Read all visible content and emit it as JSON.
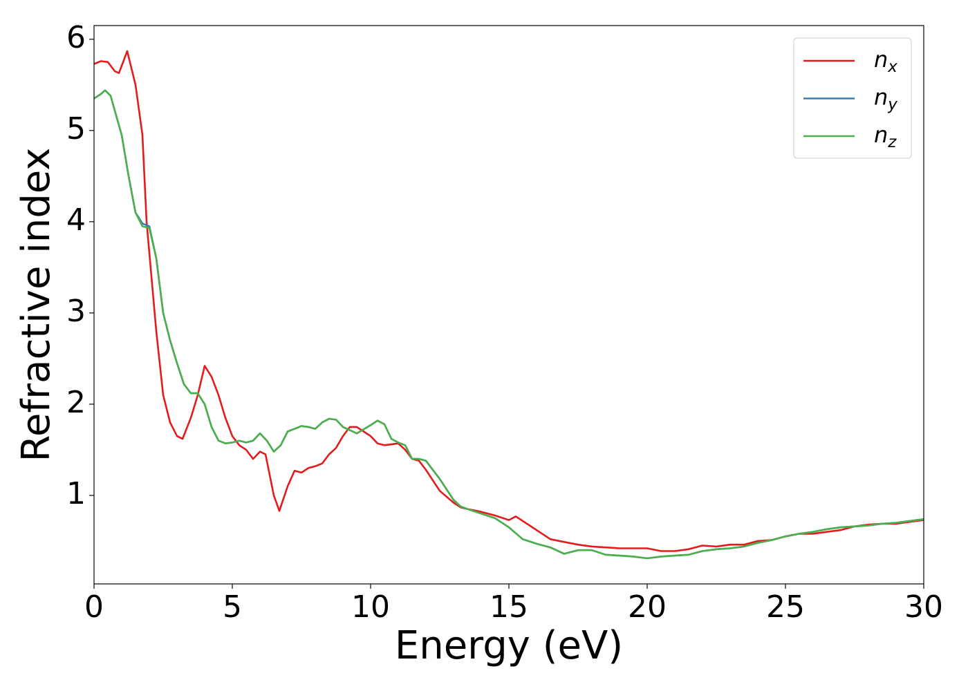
{
  "chart_data": {
    "type": "line",
    "x_label": "Energy (eV)",
    "y_label": "Refractive index",
    "xlim": [
      0,
      30
    ],
    "xticks": [
      0,
      5,
      10,
      15,
      20,
      25,
      30
    ],
    "ylim": [
      0.03,
      6.15
    ],
    "yticks": [
      1,
      2,
      3,
      4,
      5,
      6
    ],
    "grid": false,
    "legend": "upper right",
    "series": [
      {
        "name": "nx",
        "color": "#e41a1c",
        "x": [
          0,
          0.25,
          0.5,
          0.75,
          0.9,
          1.2,
          1.5,
          1.75,
          1.9,
          2.25,
          2.5,
          2.75,
          3,
          3.2,
          3.5,
          3.75,
          4,
          4.25,
          4.5,
          4.75,
          5,
          5.25,
          5.5,
          5.75,
          6,
          6.2,
          6.5,
          6.7,
          7,
          7.25,
          7.5,
          7.75,
          8,
          8.25,
          8.5,
          8.75,
          9,
          9.25,
          9.5,
          9.75,
          10,
          10.25,
          10.5,
          11,
          11.25,
          11.5,
          11.75,
          12,
          12.5,
          13,
          13.25,
          13.5,
          14,
          14.5,
          15,
          15.25,
          15.5,
          16,
          16.5,
          17,
          17.5,
          18,
          18.5,
          19,
          20,
          20.5,
          21,
          21.5,
          22,
          22.5,
          23,
          23.5,
          24,
          24.5,
          25,
          25.5,
          26,
          26.5,
          27,
          27.5,
          28,
          28.5,
          29,
          29.5,
          30
        ],
        "values": [
          5.73,
          5.76,
          5.75,
          5.65,
          5.63,
          5.87,
          5.5,
          4.95,
          4.0,
          2.8,
          2.1,
          1.8,
          1.65,
          1.62,
          1.85,
          2.1,
          2.42,
          2.3,
          2.1,
          1.85,
          1.65,
          1.55,
          1.5,
          1.4,
          1.48,
          1.45,
          1.0,
          0.83,
          1.1,
          1.27,
          1.25,
          1.3,
          1.32,
          1.35,
          1.45,
          1.52,
          1.65,
          1.75,
          1.75,
          1.7,
          1.65,
          1.57,
          1.55,
          1.57,
          1.5,
          1.4,
          1.38,
          1.28,
          1.05,
          0.92,
          0.87,
          0.85,
          0.82,
          0.78,
          0.73,
          0.77,
          0.72,
          0.62,
          0.52,
          0.49,
          0.46,
          0.44,
          0.43,
          0.42,
          0.42,
          0.39,
          0.39,
          0.41,
          0.45,
          0.44,
          0.46,
          0.46,
          0.5,
          0.51,
          0.55,
          0.58,
          0.58,
          0.6,
          0.62,
          0.66,
          0.68,
          0.69,
          0.69,
          0.71,
          0.73
        ]
      },
      {
        "name": "ny",
        "color": "#377eb8",
        "x": [
          0,
          0.25,
          0.4,
          0.6,
          1,
          1.25,
          1.5,
          1.75,
          2,
          2.25,
          2.5,
          2.75,
          3,
          3.25,
          3.5,
          3.75,
          4,
          4.25,
          4.5,
          4.75,
          5,
          5.25,
          5.5,
          5.75,
          6,
          6.25,
          6.5,
          6.75,
          7,
          7.25,
          7.5,
          7.75,
          8,
          8.25,
          8.5,
          8.75,
          9,
          9.5,
          10,
          10.25,
          10.5,
          10.75,
          11,
          11.25,
          11.5,
          11.75,
          12,
          12.5,
          13,
          13.25,
          13.5,
          14,
          14.5,
          15,
          15.5,
          16,
          16.5,
          17,
          17.5,
          18,
          18.5,
          19,
          19.5,
          20,
          20.5,
          21,
          21.5,
          22,
          22.5,
          23,
          23.5,
          24,
          24.5,
          25,
          25.5,
          26,
          26.5,
          27,
          27.5,
          28,
          28.5,
          29,
          29.5,
          30
        ],
        "values": [
          5.35,
          5.4,
          5.44,
          5.38,
          4.95,
          4.5,
          4.1,
          3.98,
          3.95,
          3.6,
          3.0,
          2.7,
          2.45,
          2.22,
          2.12,
          2.12,
          2.0,
          1.75,
          1.6,
          1.57,
          1.58,
          1.6,
          1.58,
          1.6,
          1.68,
          1.6,
          1.48,
          1.55,
          1.7,
          1.73,
          1.76,
          1.75,
          1.73,
          1.8,
          1.84,
          1.83,
          1.75,
          1.68,
          1.77,
          1.82,
          1.78,
          1.62,
          1.58,
          1.55,
          1.4,
          1.4,
          1.38,
          1.18,
          0.95,
          0.88,
          0.85,
          0.8,
          0.75,
          0.65,
          0.52,
          0.47,
          0.43,
          0.36,
          0.4,
          0.4,
          0.35,
          0.34,
          0.33,
          0.31,
          0.33,
          0.34,
          0.35,
          0.39,
          0.41,
          0.42,
          0.44,
          0.48,
          0.51,
          0.55,
          0.58,
          0.6,
          0.63,
          0.65,
          0.66,
          0.67,
          0.69,
          0.7,
          0.72,
          0.74
        ]
      },
      {
        "name": "nz",
        "color": "#4daf4a",
        "x": [
          0,
          0.25,
          0.4,
          0.6,
          1,
          1.25,
          1.5,
          1.75,
          2,
          2.25,
          2.5,
          2.75,
          3,
          3.25,
          3.5,
          3.75,
          4,
          4.25,
          4.5,
          4.75,
          5,
          5.25,
          5.5,
          5.75,
          6,
          6.25,
          6.5,
          6.75,
          7,
          7.25,
          7.5,
          7.75,
          8,
          8.25,
          8.5,
          8.75,
          9,
          9.5,
          10,
          10.25,
          10.5,
          10.75,
          11,
          11.25,
          11.5,
          11.75,
          12,
          12.5,
          13,
          13.25,
          13.5,
          14,
          14.5,
          15,
          15.5,
          16,
          16.5,
          17,
          17.5,
          18,
          18.5,
          19,
          19.5,
          20,
          20.5,
          21,
          21.5,
          22,
          22.5,
          23,
          23.5,
          24,
          24.5,
          25,
          25.5,
          26,
          26.5,
          27,
          27.5,
          28,
          28.5,
          29,
          29.5,
          30
        ],
        "values": [
          5.35,
          5.4,
          5.44,
          5.38,
          4.95,
          4.5,
          4.1,
          3.95,
          3.93,
          3.6,
          3.0,
          2.7,
          2.45,
          2.22,
          2.12,
          2.12,
          2.0,
          1.75,
          1.6,
          1.57,
          1.58,
          1.6,
          1.58,
          1.6,
          1.68,
          1.6,
          1.48,
          1.55,
          1.7,
          1.73,
          1.76,
          1.75,
          1.73,
          1.8,
          1.84,
          1.83,
          1.75,
          1.68,
          1.77,
          1.82,
          1.78,
          1.62,
          1.58,
          1.55,
          1.4,
          1.4,
          1.38,
          1.18,
          0.95,
          0.88,
          0.85,
          0.8,
          0.75,
          0.65,
          0.52,
          0.47,
          0.43,
          0.36,
          0.4,
          0.4,
          0.35,
          0.34,
          0.33,
          0.31,
          0.33,
          0.34,
          0.35,
          0.39,
          0.41,
          0.42,
          0.44,
          0.48,
          0.51,
          0.55,
          0.58,
          0.6,
          0.63,
          0.65,
          0.66,
          0.67,
          0.69,
          0.7,
          0.72,
          0.74
        ]
      }
    ]
  }
}
